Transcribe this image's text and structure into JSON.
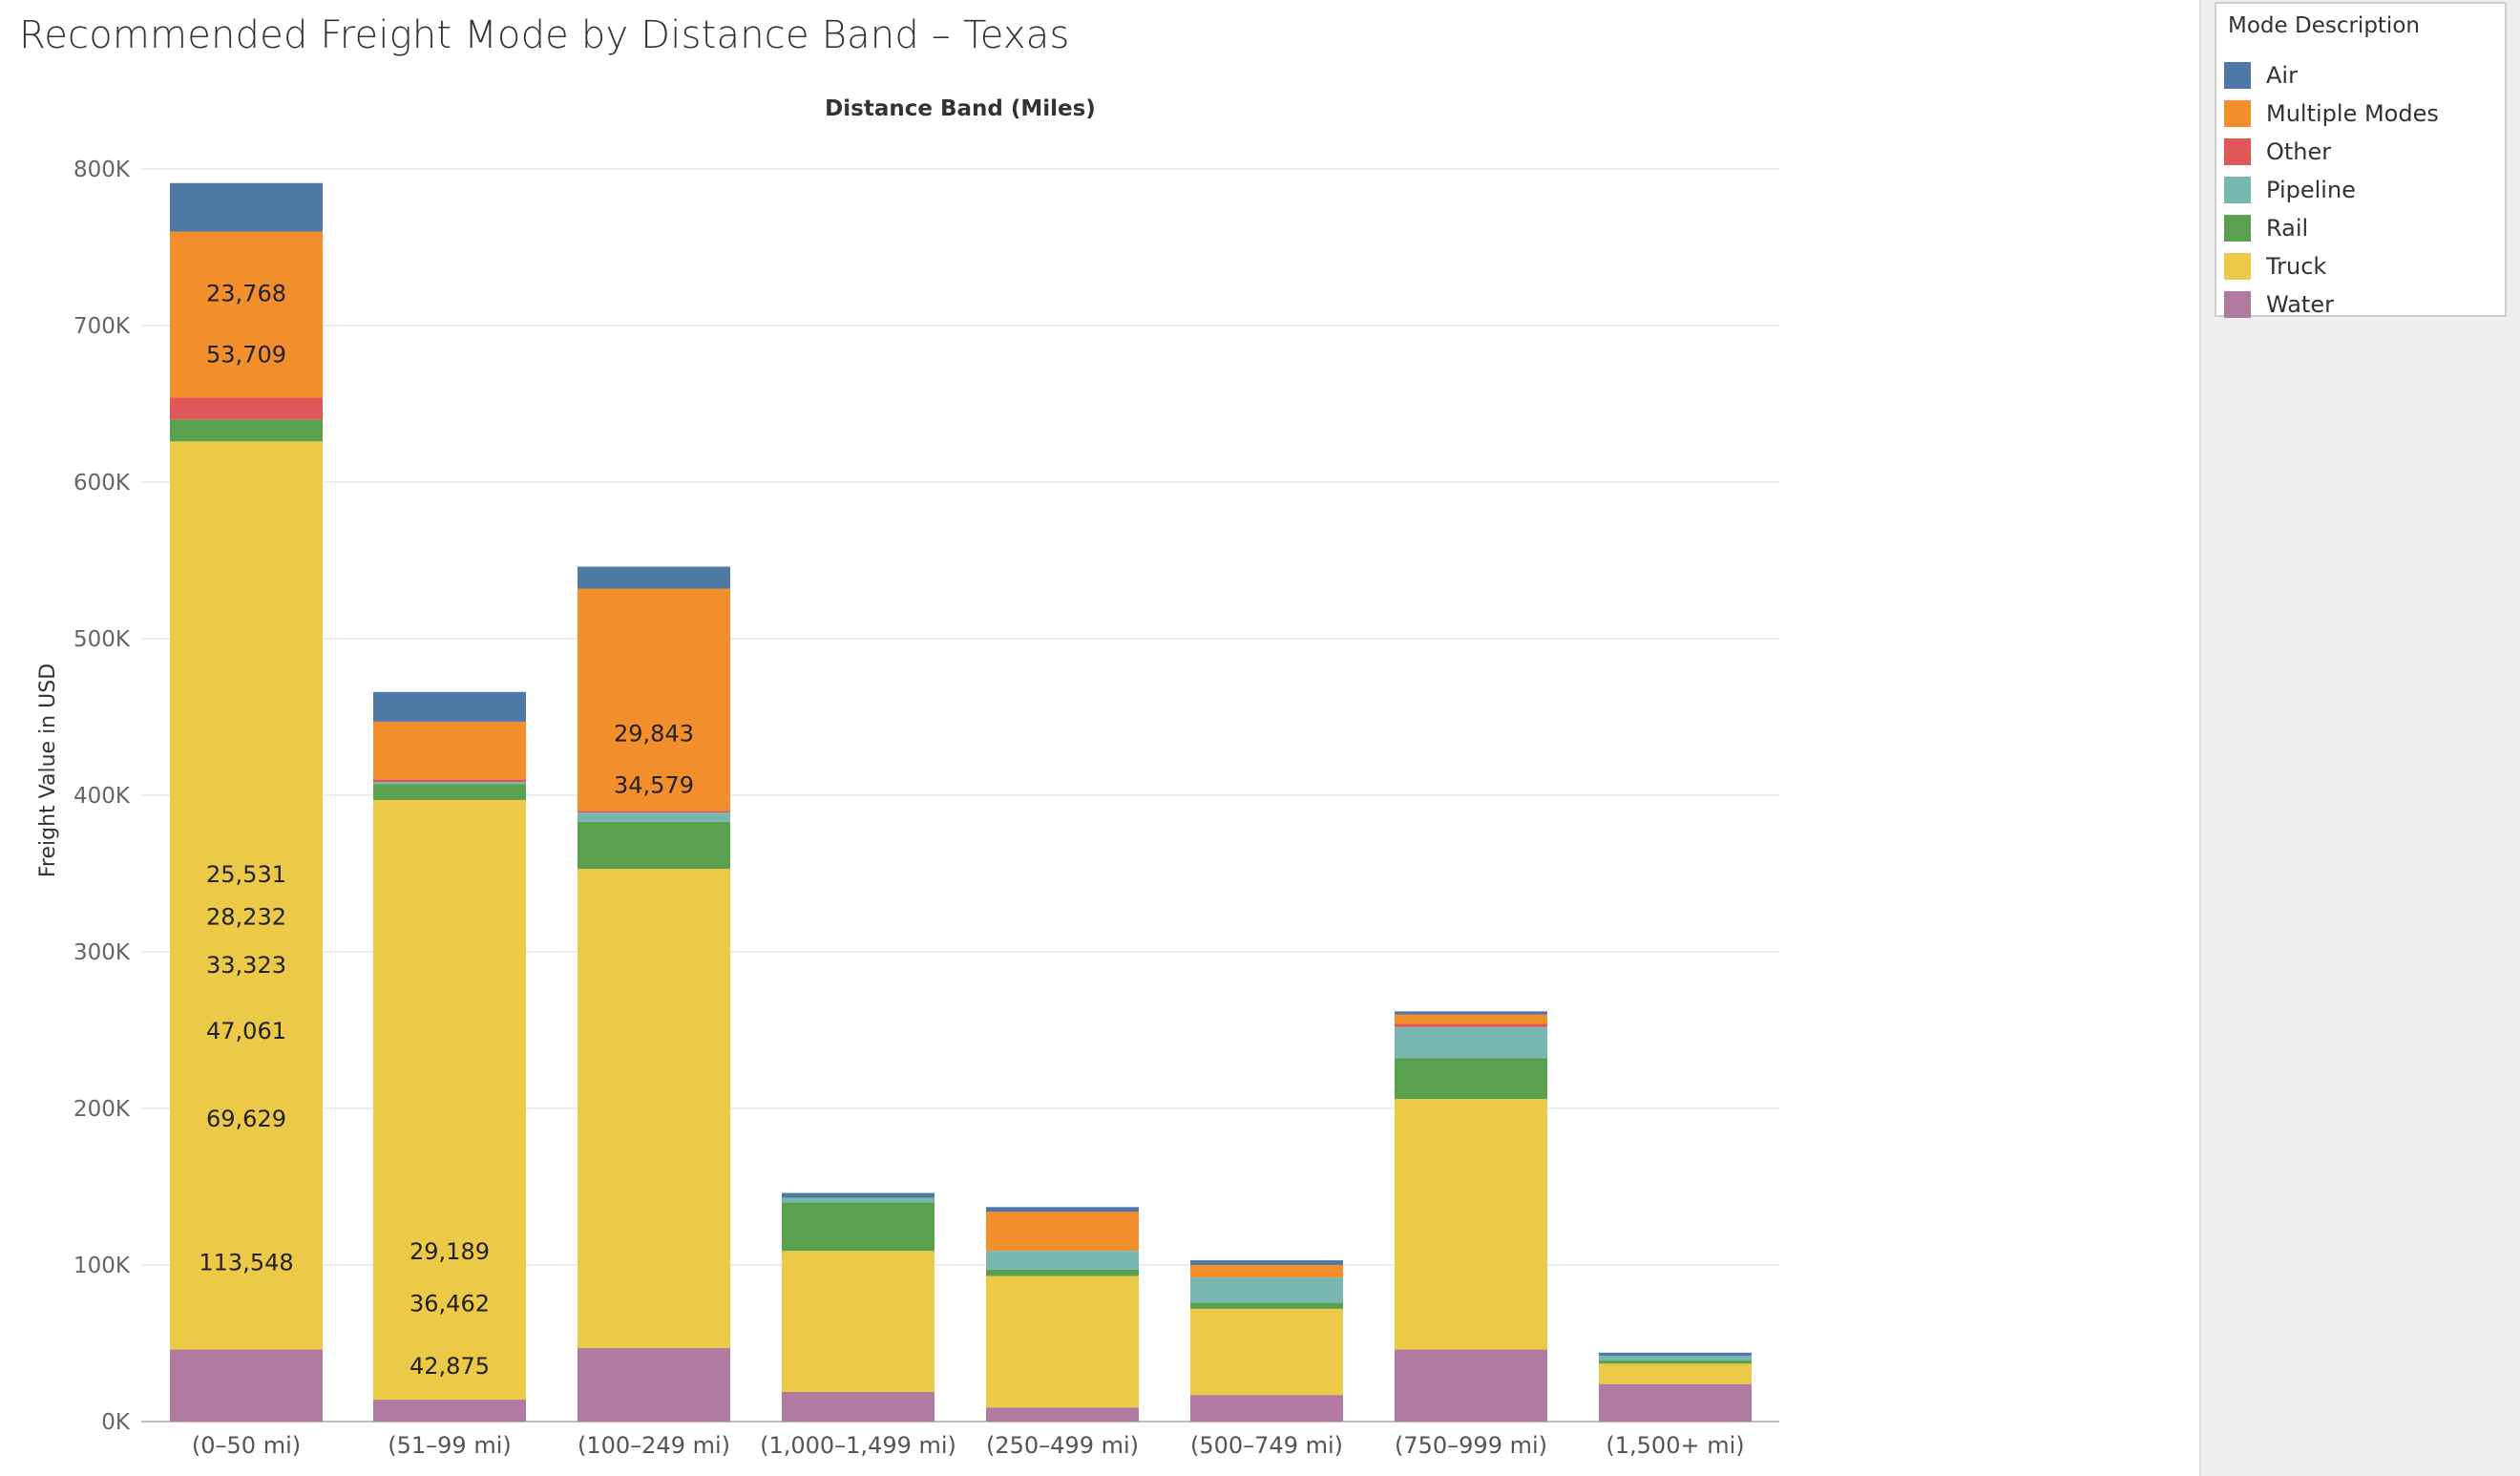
{
  "title": "Recommended Freight Mode by Distance Band – Texas",
  "legend": {
    "title": "Mode Description",
    "items": [
      {
        "label": "Air",
        "color": "#4e79a7"
      },
      {
        "label": "Multiple Modes",
        "color": "#f28e2b"
      },
      {
        "label": "Other",
        "color": "#e15759"
      },
      {
        "label": "Pipeline",
        "color": "#76b7b2"
      },
      {
        "label": "Rail",
        "color": "#59a14f"
      },
      {
        "label": "Truck",
        "color": "#edc948"
      },
      {
        "label": "Water",
        "color": "#b07aa1"
      }
    ]
  },
  "chart_data": {
    "type": "bar",
    "stacked": true,
    "title": "Recommended Freight Mode by Distance Band – Texas",
    "column_header": "Distance Band (Miles)",
    "ylabel": "Freight Value in USD",
    "ylim": [
      0,
      820000
    ],
    "yticks": [
      0,
      100000,
      200000,
      300000,
      400000,
      500000,
      600000,
      700000,
      800000
    ],
    "ytick_labels": [
      "0K",
      "100K",
      "200K",
      "300K",
      "400K",
      "500K",
      "600K",
      "700K",
      "800K"
    ],
    "grid": true,
    "legend_position": "right",
    "categories": [
      "(0–50 mi)",
      "(51–99 mi)",
      "(100–249 mi)",
      "(1,000–1,499 mi)",
      "(250–499 mi)",
      "(500–749 mi)",
      "(750–999 mi)",
      "(1,500+ mi)"
    ],
    "series": [
      {
        "name": "Water",
        "color": "#b07aa1",
        "values": [
          46000,
          14000,
          47000,
          19000,
          9000,
          17000,
          46000,
          24000
        ]
      },
      {
        "name": "Truck",
        "color": "#edc948",
        "values": [
          580000,
          383000,
          306000,
          90000,
          84000,
          55000,
          160000,
          13000
        ]
      },
      {
        "name": "Rail",
        "color": "#59a14f",
        "values": [
          14000,
          10000,
          30000,
          31000,
          4000,
          4000,
          26000,
          2000
        ]
      },
      {
        "name": "Pipeline",
        "color": "#76b7b2",
        "values": [
          0,
          1500,
          6000,
          3000,
          12000,
          16000,
          20000,
          3000
        ]
      },
      {
        "name": "Other",
        "color": "#e15759",
        "values": [
          14000,
          1500,
          1000,
          0,
          0,
          0,
          2000,
          0
        ]
      },
      {
        "name": "Multiple Modes",
        "color": "#f28e2b",
        "values": [
          106000,
          37000,
          142000,
          0,
          25000,
          8000,
          6000,
          0
        ]
      },
      {
        "name": "Air",
        "color": "#4e79a7",
        "values": [
          31000,
          19000,
          14000,
          3000,
          3000,
          3000,
          2000,
          2000
        ]
      }
    ],
    "data_labels": [
      {
        "category_index": 0,
        "value": 23768,
        "text": "23,768",
        "y": 721000
      },
      {
        "category_index": 0,
        "value": 53709,
        "text": "53,709",
        "y": 682000
      },
      {
        "category_index": 0,
        "value": 25531,
        "text": "25,531",
        "y": 350000
      },
      {
        "category_index": 0,
        "value": 28232,
        "text": "28,232",
        "y": 323000
      },
      {
        "category_index": 0,
        "value": 33323,
        "text": "33,323",
        "y": 292000
      },
      {
        "category_index": 0,
        "value": 47061,
        "text": "47,061",
        "y": 250000
      },
      {
        "category_index": 0,
        "value": 69629,
        "text": "69,629",
        "y": 194000
      },
      {
        "category_index": 0,
        "value": 113548,
        "text": "113,548",
        "y": 102000
      },
      {
        "category_index": 1,
        "value": 29189,
        "text": "29,189",
        "y": 109000
      },
      {
        "category_index": 1,
        "value": 36462,
        "text": "36,462",
        "y": 76000
      },
      {
        "category_index": 1,
        "value": 42875,
        "text": "42,875",
        "y": 36000
      },
      {
        "category_index": 2,
        "value": 29843,
        "text": "29,843",
        "y": 440000
      },
      {
        "category_index": 2,
        "value": 34579,
        "text": "34,579",
        "y": 407000
      }
    ]
  }
}
